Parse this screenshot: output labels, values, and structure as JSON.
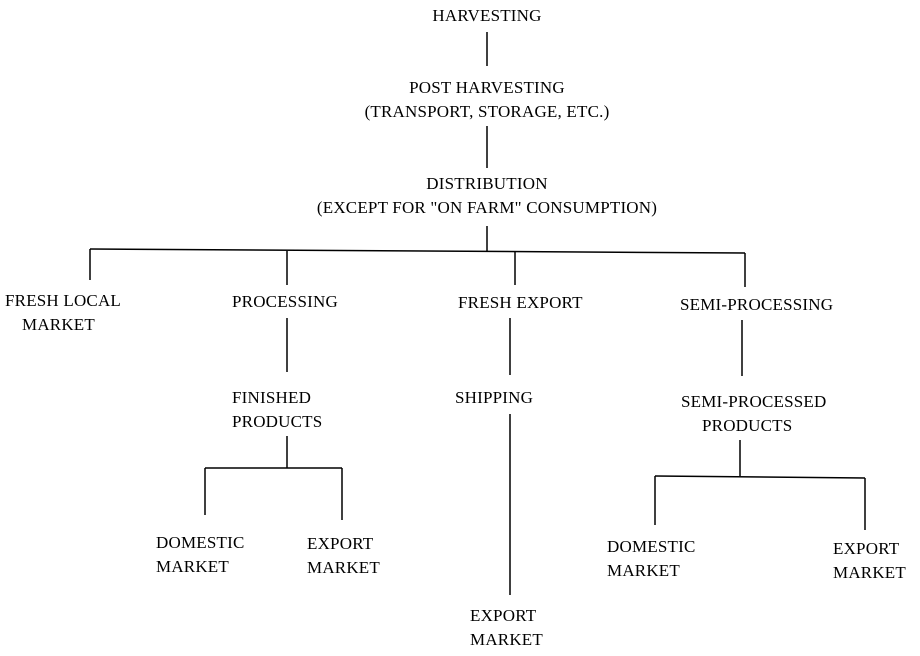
{
  "nodes": {
    "harvesting": "HARVESTING",
    "post_harvesting": [
      "POST HARVESTING",
      "(TRANSPORT, STORAGE, ETC.)"
    ],
    "distribution": [
      "DISTRIBUTION",
      "(EXCEPT FOR \"ON FARM\" CONSUMPTION)"
    ],
    "fresh_local": [
      "FRESH LOCAL",
      "MARKET"
    ],
    "processing": "PROCESSING",
    "fresh_export": "FRESH EXPORT",
    "semi_processing": "SEMI-PROCESSING",
    "finished_products": [
      "FINISHED",
      "PRODUCTS"
    ],
    "shipping": "SHIPPING",
    "semi_processed_products": [
      "SEMI-PROCESSED",
      "PRODUCTS"
    ],
    "proc_domestic": [
      "DOMESTIC",
      "MARKET"
    ],
    "proc_export": [
      "EXPORT",
      "MARKET"
    ],
    "ship_export": [
      "EXPORT",
      "MARKET"
    ],
    "semi_domestic": [
      "DOMESTIC",
      "MARKET"
    ],
    "semi_export": [
      "EXPORT",
      "MARKET"
    ]
  }
}
